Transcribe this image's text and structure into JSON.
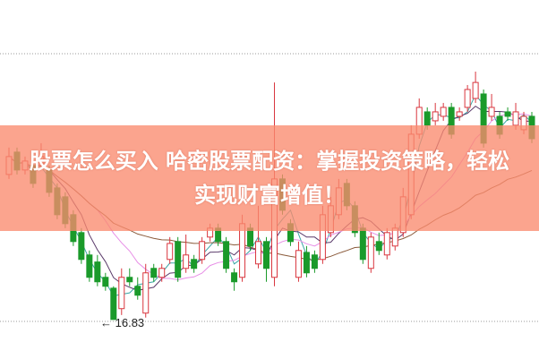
{
  "chart_data": {
    "type": "candlestick",
    "title": "",
    "ohlc_order": [
      "open",
      "close",
      "high",
      "low"
    ],
    "candles": [
      [
        19.1,
        19.38,
        19.52,
        19.03
      ],
      [
        19.45,
        19.17,
        19.52,
        19.1
      ],
      [
        19.17,
        19.31,
        19.38,
        19.1
      ],
      [
        19.24,
        18.96,
        19.31,
        18.89
      ],
      [
        19.24,
        19.38,
        19.59,
        19.17
      ],
      [
        19.17,
        18.82,
        19.24,
        18.75
      ],
      [
        18.89,
        18.47,
        18.96,
        18.4
      ],
      [
        18.75,
        18.33,
        18.82,
        18.26
      ],
      [
        18.47,
        18.05,
        18.54,
        17.98
      ],
      [
        18.19,
        17.77,
        18.26,
        17.7
      ],
      [
        17.84,
        17.49,
        17.91,
        17.42
      ],
      [
        17.73,
        17.42,
        17.84,
        17.35
      ],
      [
        17.49,
        17.35,
        17.56,
        17.28
      ],
      [
        17.32,
        16.83,
        17.35,
        16.83
      ],
      [
        17.0,
        17.49,
        17.63,
        16.9
      ],
      [
        17.49,
        17.42,
        17.63,
        17.35
      ],
      [
        17.35,
        17.21,
        17.49,
        17.14
      ],
      [
        16.93,
        17.56,
        17.7,
        16.86
      ],
      [
        17.63,
        17.49,
        17.7,
        17.42
      ],
      [
        17.49,
        17.63,
        17.7,
        17.42
      ],
      [
        17.77,
        18.02,
        18.12,
        17.7
      ],
      [
        18.05,
        17.49,
        18.12,
        17.42
      ],
      [
        17.63,
        17.84,
        18.16,
        17.56
      ],
      [
        17.77,
        17.63,
        17.84,
        17.56
      ],
      [
        17.77,
        18.05,
        18.12,
        17.7
      ],
      [
        18.12,
        18.26,
        18.33,
        18.05
      ],
      [
        18.26,
        18.05,
        18.33,
        17.98
      ],
      [
        18.05,
        17.63,
        18.12,
        17.56
      ],
      [
        17.56,
        17.42,
        17.63,
        17.28
      ],
      [
        17.49,
        18.33,
        18.47,
        17.42
      ],
      [
        18.26,
        17.98,
        18.33,
        17.91
      ],
      [
        17.7,
        18.05,
        18.61,
        17.63
      ],
      [
        18.05,
        17.63,
        18.12,
        17.42
      ],
      [
        17.49,
        19.03,
        20.54,
        17.35
      ],
      [
        19.03,
        18.54,
        19.1,
        18.47
      ],
      [
        18.33,
        18.05,
        18.4,
        17.98
      ],
      [
        17.49,
        17.91,
        18.05,
        17.42
      ],
      [
        17.88,
        17.56,
        17.98,
        17.49
      ],
      [
        17.84,
        17.63,
        17.91,
        17.56
      ],
      [
        17.77,
        18.47,
        18.61,
        17.7
      ],
      [
        18.19,
        18.61,
        18.75,
        18.12
      ],
      [
        18.47,
        18.89,
        19.03,
        18.4
      ],
      [
        18.96,
        18.61,
        19.03,
        18.54
      ],
      [
        18.61,
        18.19,
        18.68,
        18.12
      ],
      [
        18.26,
        17.77,
        18.33,
        17.7
      ],
      [
        17.63,
        18.12,
        18.19,
        17.56
      ],
      [
        18.05,
        17.91,
        18.19,
        17.84
      ],
      [
        17.84,
        18.19,
        18.26,
        17.77
      ],
      [
        17.98,
        18.26,
        18.33,
        17.91
      ],
      [
        18.19,
        18.75,
        18.89,
        18.12
      ],
      [
        18.47,
        19.73,
        19.87,
        18.4
      ],
      [
        19.73,
        20.15,
        20.29,
        19.66
      ],
      [
        20.08,
        19.87,
        20.15,
        19.8
      ],
      [
        19.94,
        20.08,
        20.22,
        19.87
      ],
      [
        20.01,
        20.15,
        20.22,
        19.94
      ],
      [
        20.15,
        19.73,
        20.22,
        19.66
      ],
      [
        20.01,
        20.08,
        20.15,
        19.94
      ],
      [
        20.15,
        20.43,
        20.5,
        20.08
      ],
      [
        20.29,
        20.54,
        20.71,
        20.22
      ],
      [
        20.36,
        19.59,
        20.43,
        19.52
      ],
      [
        20.01,
        20.15,
        20.36,
        19.94
      ],
      [
        20.01,
        19.73,
        20.08,
        19.66
      ],
      [
        20.08,
        20.01,
        20.15,
        19.94
      ],
      [
        19.87,
        20.08,
        20.22,
        19.8
      ],
      [
        19.8,
        20.01,
        20.08,
        19.73
      ],
      [
        20.01,
        19.66,
        20.08,
        19.59
      ]
    ],
    "ylim": [
      16.7,
      21.0
    ],
    "grid": "dotted horizontal",
    "low_annotation": "16.83",
    "colors": {
      "up": "#d9363e",
      "down": "#1a9a2a",
      "ma_lines": [
        "#3aa6a6",
        "#5a3a6a",
        "#e78ee6",
        "#8a5a3a"
      ]
    }
  },
  "overlay": {
    "line1": "股票怎么买入 哈密股票配资：掌握投资策略，轻松",
    "line2": "实现财富增值！",
    "color": "#fa8a6e"
  }
}
